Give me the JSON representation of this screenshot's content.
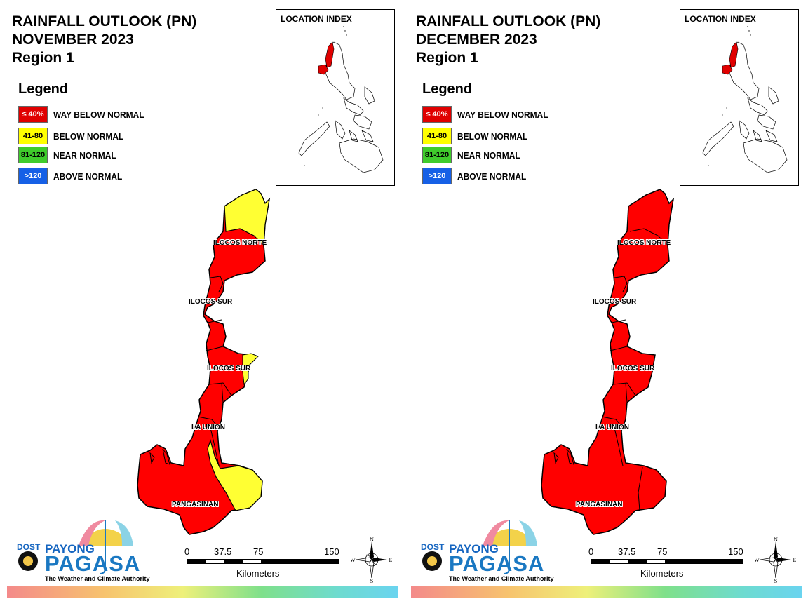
{
  "panels": [
    {
      "title_line1": "RAINFALL OUTLOOK (PN)",
      "title_line2": "NOVEMBER 2023",
      "title_line3": "Region 1",
      "province_fills": {
        "ilocos_norte": "mixed-red-yellow",
        "ilocos_sur": "mostly-red",
        "la_union": "red",
        "pangasinan": "red-with-yellow-east"
      }
    },
    {
      "title_line1": "RAINFALL OUTLOOK (PN)",
      "title_line2": "DECEMBER 2023",
      "title_line3": "Region 1",
      "province_fills": {
        "ilocos_norte": "red",
        "ilocos_sur": "red",
        "la_union": "red",
        "pangasinan": "red"
      }
    }
  ],
  "legend": {
    "title": "Legend",
    "items": [
      {
        "range": "≤ 40%",
        "label": "WAY BELOW NORMAL",
        "color": "#e00000",
        "text_color": "#ffffff"
      },
      {
        "range": "41-80",
        "label": "BELOW NORMAL",
        "color": "#ffff00",
        "text_color": "#000000"
      },
      {
        "range": "81-120",
        "label": "NEAR NORMAL",
        "color": "#3fcc2c",
        "text_color": "#000000"
      },
      {
        "range": ">120",
        "label": "ABOVE NORMAL",
        "color": "#1660e6",
        "text_color": "#ffffff"
      }
    ]
  },
  "location_index": {
    "title": "LOCATION INDEX",
    "highlight_color": "#e00000"
  },
  "province_labels": [
    "ILOCOS NORTE",
    "ILOCOS SUR",
    "ILOCOS SUR",
    "LA UNION",
    "PANGASINAN"
  ],
  "scale": {
    "ticks": [
      "0",
      "37.5",
      "75",
      "150"
    ],
    "unit": "Kilometers"
  },
  "compass": {
    "n": "N",
    "s": "S",
    "e": "E",
    "w": "W"
  },
  "logo": {
    "agency": "DOST",
    "brand_top": "PAYONG",
    "brand_main": "PAGASA",
    "tagline": "The Weather and Climate Authority"
  },
  "colors": {
    "red": "#ff0000",
    "yellow": "#ffff33",
    "outline": "#000000"
  }
}
